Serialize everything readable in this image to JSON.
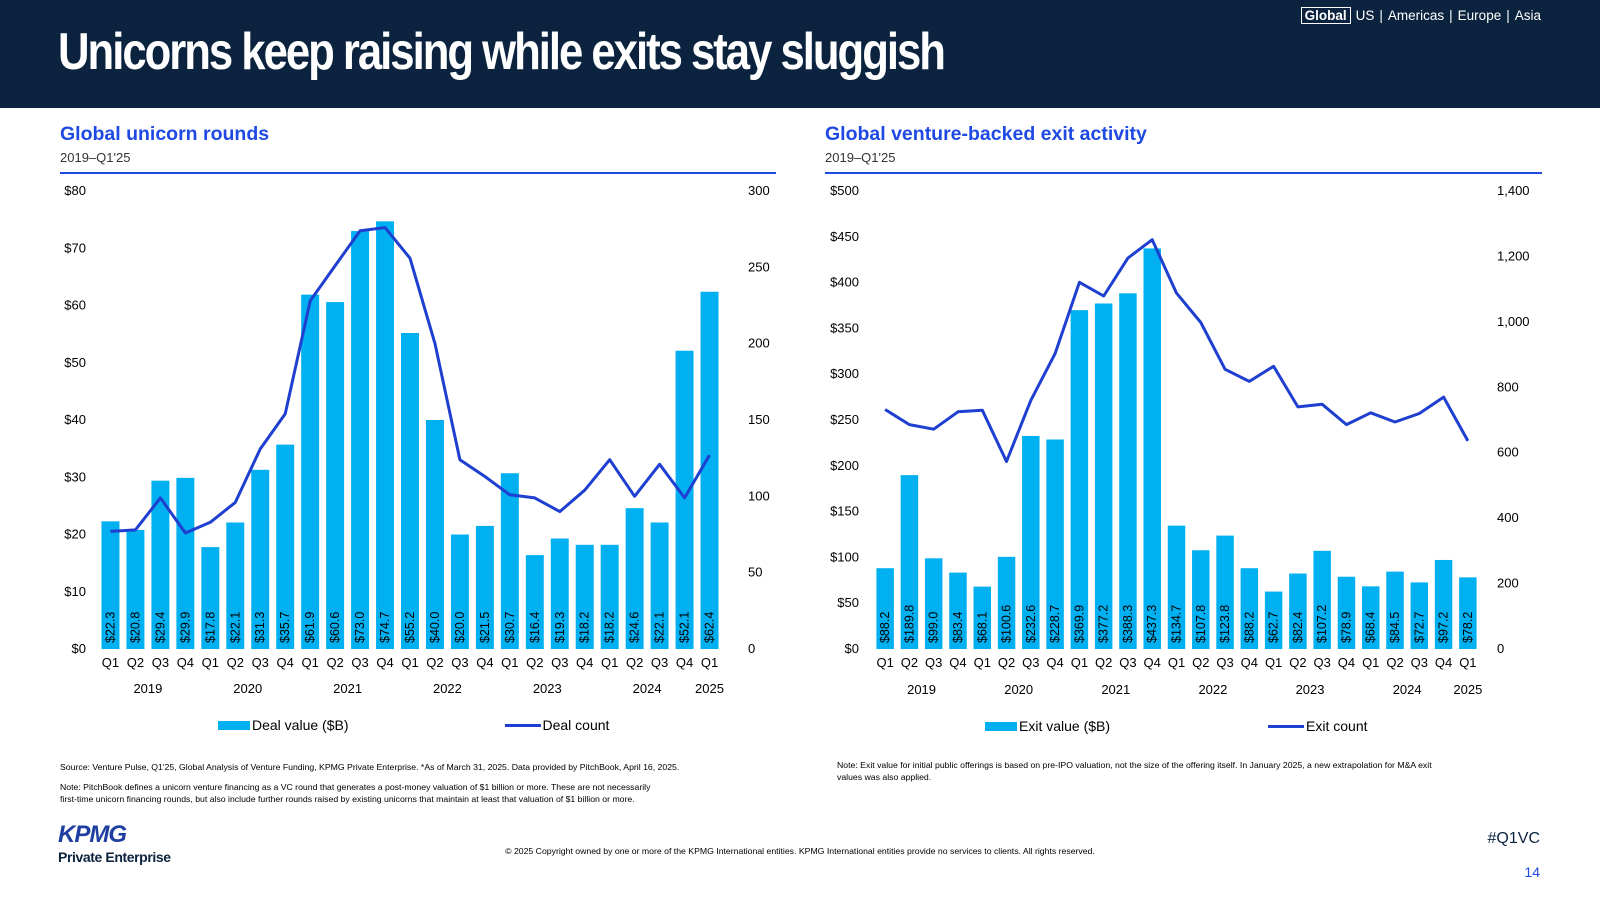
{
  "header": {
    "title": "Unicorns keep raising while exits stay sluggish",
    "regions": [
      "Global",
      "US",
      "Americas",
      "Europe",
      "Asia"
    ],
    "active_region": "Global"
  },
  "left_panel": {
    "title": "Global unicorn rounds",
    "subtitle": "2019–Q1'25",
    "note_source": "Source: Venture Pulse, Q1'25, Global Analysis of Venture Funding, KPMG Private Enterprise. *As of March 31, 2025. Data provided by PitchBook, April 16, 2025.",
    "note_1": "Note: PitchBook defines a unicorn venture financing as a VC round that generates a post-money valuation of $1 billion or more. These are not necessarily",
    "note_2": "first-time unicorn financing rounds, but also include further rounds raised by existing unicorns that maintain at least that valuation of $1 billion or more."
  },
  "right_panel": {
    "title": "Global venture-backed exit activity",
    "subtitle": "2019–Q1'25",
    "note_1": "Note: Exit value for initial public offerings is based on pre-IPO valuation, not the size of the offering itself. In January 2025, a new extrapolation for M&A exit",
    "note_2": "values was also applied."
  },
  "footer": {
    "copyright": "© 2025 Copyright owned by one or more of the KPMG International entities. KPMG International entities provide no services to clients. All rights reserved.",
    "logo_text": "KPMG",
    "logo_subtext": "Private Enterprise",
    "hashtag": "#Q1VC",
    "page_number": "14"
  },
  "colors": {
    "header_bg": "#0c233f",
    "accent": "#1e49e2",
    "bar": "#00b0f0",
    "line": "#1e3fd0"
  },
  "chart_data": [
    {
      "type": "bar",
      "title": "Global unicorn rounds",
      "subtitle": "2019–Q1'25",
      "quarters": [
        "Q1",
        "Q2",
        "Q3",
        "Q4",
        "Q1",
        "Q2",
        "Q3",
        "Q4",
        "Q1",
        "Q2",
        "Q3",
        "Q4",
        "Q1",
        "Q2",
        "Q3",
        "Q4",
        "Q1",
        "Q2",
        "Q3",
        "Q4",
        "Q1",
        "Q2",
        "Q3",
        "Q4",
        "Q1"
      ],
      "years": [
        "2019",
        "2020",
        "2021",
        "2022",
        "2023",
        "2024",
        "2025"
      ],
      "year_quarter_counts": [
        4,
        4,
        4,
        4,
        4,
        4,
        1
      ],
      "series": [
        {
          "name": "Deal value ($B)",
          "type": "bar",
          "axis": "left",
          "values": [
            22.3,
            20.8,
            29.4,
            29.9,
            17.8,
            22.1,
            31.3,
            35.7,
            61.9,
            60.6,
            73.0,
            74.7,
            55.2,
            40.0,
            20.0,
            21.5,
            30.7,
            16.4,
            19.3,
            18.2,
            18.2,
            24.6,
            22.1,
            52.1,
            62.4
          ],
          "labels": [
            "$22.3",
            "$20.8",
            "$29.4",
            "$29.9",
            "$17.8",
            "$22.1",
            "$31.3",
            "$35.7",
            "$61.9",
            "$60.6",
            "$73.0",
            "$74.7",
            "$55.2",
            "$40.0",
            "$20.0",
            "$21.5",
            "$30.7",
            "$16.4",
            "$19.3",
            "$18.2",
            "$18.2",
            "$24.6",
            "$22.1",
            "$52.1",
            "$62.4"
          ]
        },
        {
          "name": "Deal count",
          "type": "line",
          "axis": "right",
          "values": [
            77,
            78,
            99,
            76,
            83,
            96,
            131,
            154,
            228,
            251,
            274,
            276,
            256,
            200,
            124,
            113,
            101,
            99,
            90,
            104,
            124,
            100,
            121,
            99,
            127
          ]
        }
      ],
      "left_axis": {
        "ylim": [
          0,
          80
        ],
        "ticks": [
          "$0",
          "$10",
          "$20",
          "$30",
          "$40",
          "$50",
          "$60",
          "$70",
          "$80"
        ]
      },
      "right_axis": {
        "ylim": [
          0,
          300
        ],
        "ticks": [
          "0",
          "50",
          "100",
          "150",
          "200",
          "250",
          "300"
        ]
      },
      "legend": "bottom"
    },
    {
      "type": "bar",
      "title": "Global venture-backed exit activity",
      "subtitle": "2019–Q1'25",
      "quarters": [
        "Q1",
        "Q2",
        "Q3",
        "Q4",
        "Q1",
        "Q2",
        "Q3",
        "Q4",
        "Q1",
        "Q2",
        "Q3",
        "Q4",
        "Q1",
        "Q2",
        "Q3",
        "Q4",
        "Q1",
        "Q2",
        "Q3",
        "Q4",
        "Q1",
        "Q2",
        "Q3",
        "Q4",
        "Q1"
      ],
      "years": [
        "2019",
        "2020",
        "2021",
        "2022",
        "2023",
        "2024",
        "2025"
      ],
      "year_quarter_counts": [
        4,
        4,
        4,
        4,
        4,
        4,
        1
      ],
      "series": [
        {
          "name": "Exit value ($B)",
          "type": "bar",
          "axis": "left",
          "values": [
            88.2,
            189.8,
            99.0,
            83.4,
            68.1,
            100.6,
            232.6,
            228.7,
            369.9,
            377.2,
            388.3,
            437.3,
            134.7,
            107.8,
            123.8,
            88.2,
            62.7,
            82.4,
            107.2,
            78.9,
            68.4,
            84.5,
            72.7,
            97.2,
            78.2
          ],
          "labels": [
            "$88.2",
            "$189.8",
            "$99.0",
            "$83.4",
            "$68.1",
            "$100.6",
            "$232.6",
            "$228.7",
            "$369.9",
            "$377.2",
            "$388.3",
            "$437.3",
            "$134.7",
            "$107.8",
            "$123.8",
            "$88.2",
            "$62.7",
            "$82.4",
            "$107.2",
            "$78.9",
            "$68.4",
            "$84.5",
            "$72.7",
            "$97.2",
            "$78.2"
          ]
        },
        {
          "name": "Exit count",
          "type": "line",
          "axis": "right",
          "values": [
            732,
            686,
            672,
            725,
            730,
            573,
            760,
            903,
            1121,
            1079,
            1195,
            1251,
            1088,
            998,
            855,
            818,
            864,
            740,
            748,
            686,
            722,
            694,
            720,
            770,
            636
          ]
        }
      ],
      "left_axis": {
        "ylim": [
          0,
          500
        ],
        "ticks": [
          "$0",
          "$50",
          "$100",
          "$150",
          "$200",
          "$250",
          "$300",
          "$350",
          "$400",
          "$450",
          "$500"
        ]
      },
      "right_axis": {
        "ylim": [
          0,
          1400
        ],
        "ticks": [
          "0",
          "200",
          "400",
          "600",
          "800",
          "1,000",
          "1,200",
          "1,400"
        ]
      },
      "legend": "bottom"
    }
  ]
}
